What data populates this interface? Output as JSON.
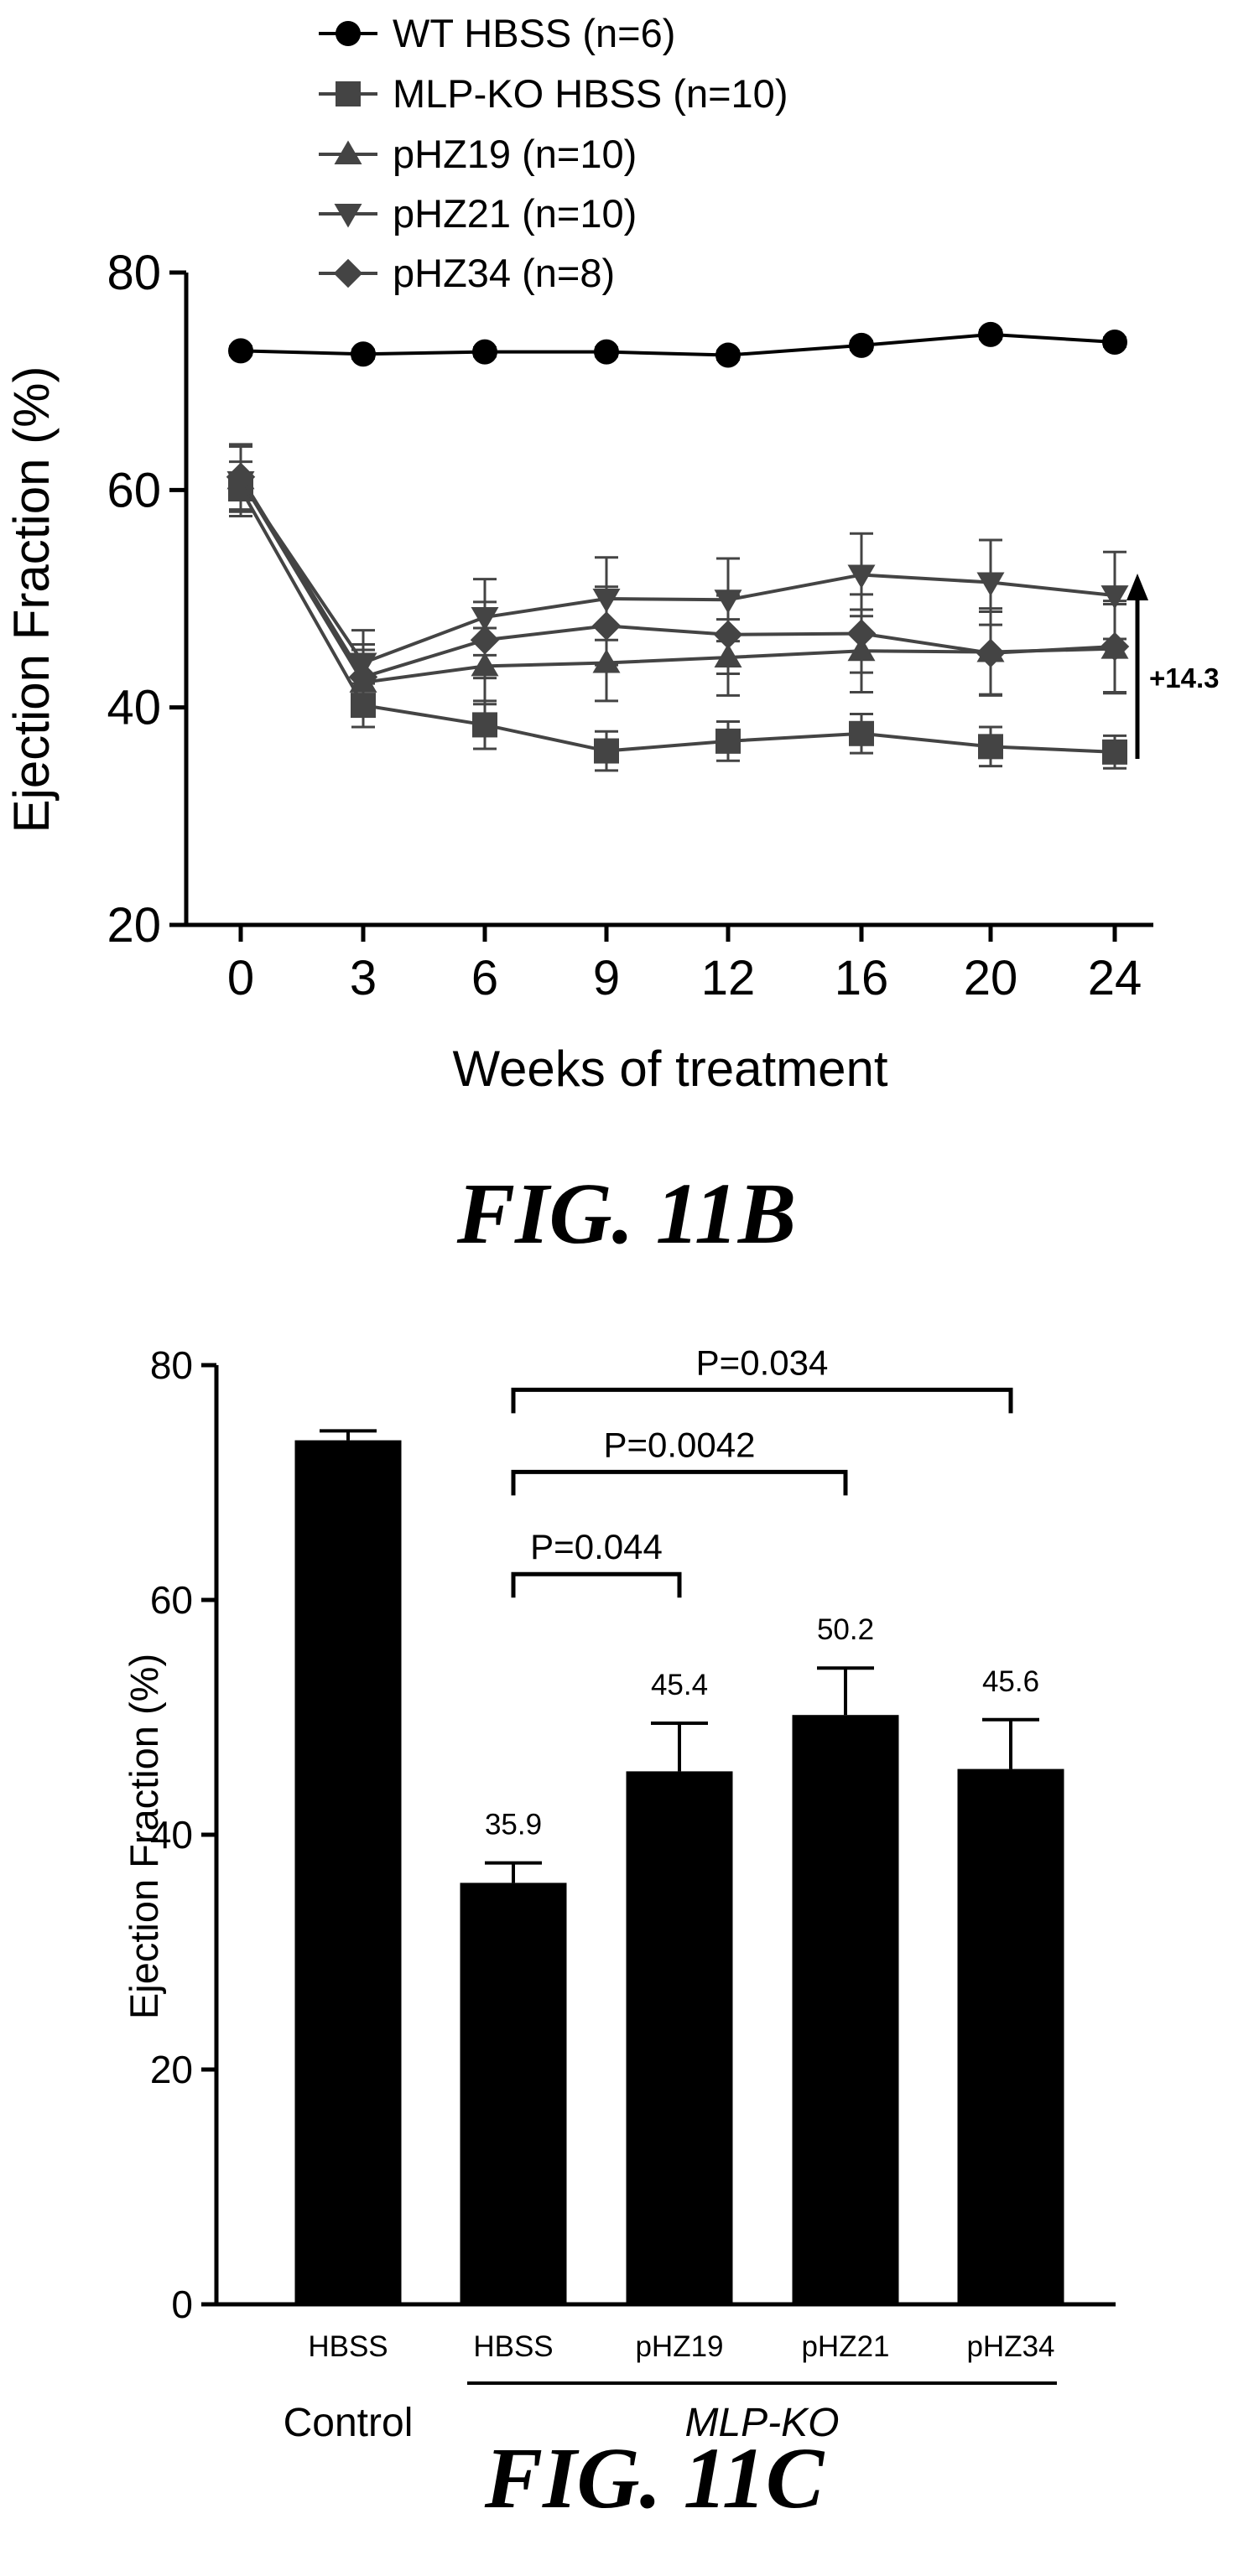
{
  "figure_b_caption": "FIG. 11B",
  "figure_c_caption": "FIG. 11C",
  "chart_data": [
    {
      "type": "line",
      "xlabel": "Weeks of treatment",
      "ylabel": "Ejection Fraction (%)",
      "ylim": [
        20,
        80
      ],
      "yticks": [
        "20",
        "40",
        "60",
        "80"
      ],
      "categories": [
        "0",
        "3",
        "6",
        "9",
        "12",
        "16",
        "20",
        "24"
      ],
      "legend_position": "top-left",
      "series": [
        {
          "name": "WT HBSS (n=6)",
          "marker": "circle",
          "values": [
            72.8,
            72.5,
            72.7,
            72.7,
            72.4,
            73.3,
            74.3,
            73.6
          ],
          "errors": [
            0.4,
            0.4,
            0.4,
            0.4,
            0.4,
            0.4,
            0.4,
            0.4
          ]
        },
        {
          "name": "MLP-KO HBSS (n=10)",
          "marker": "square",
          "values": [
            60.1,
            40.2,
            38.4,
            36.0,
            36.9,
            37.6,
            36.4,
            35.9
          ],
          "errors": [
            2.5,
            2.0,
            2.2,
            1.8,
            1.8,
            1.8,
            1.8,
            1.5
          ]
        },
        {
          "name": "pHZ19 (n=10)",
          "marker": "triangle-up",
          "values": [
            61.0,
            42.3,
            43.8,
            44.1,
            44.6,
            45.2,
            45.1,
            45.4
          ],
          "errors": [
            3.0,
            3.0,
            3.5,
            3.5,
            3.5,
            3.8,
            4.0,
            4.1
          ]
        },
        {
          "name": "pHZ21 (n=10)",
          "marker": "triangle-down",
          "values": [
            60.8,
            44.1,
            48.3,
            50.0,
            49.9,
            52.2,
            51.5,
            50.3
          ],
          "errors": [
            3.2,
            3.0,
            3.5,
            3.8,
            3.8,
            3.8,
            3.9,
            4.0
          ]
        },
        {
          "name": "pHZ34 (n=8)",
          "marker": "diamond",
          "values": [
            61.2,
            42.8,
            46.2,
            47.5,
            46.7,
            46.8,
            45.0,
            45.6
          ],
          "errors": [
            3.0,
            3.0,
            3.5,
            3.6,
            3.6,
            3.6,
            3.8,
            4.2
          ]
        }
      ],
      "annotation": {
        "text": "+14.3",
        "from": 35.9,
        "to": 50.2
      }
    },
    {
      "type": "bar",
      "ylabel": "Ejection Fraction (%)",
      "ylim": [
        0,
        80
      ],
      "yticks": [
        "0",
        "20",
        "40",
        "60",
        "80"
      ],
      "categories": [
        "HBSS",
        "HBSS",
        "pHZ19",
        "pHZ21",
        "pHZ34"
      ],
      "values": [
        73.6,
        35.9,
        45.4,
        50.2,
        45.6
      ],
      "errors": [
        0.8,
        1.7,
        4.1,
        4.0,
        4.2
      ],
      "data_labels": [
        "",
        "35.9",
        "45.4",
        "50.2",
        "45.6"
      ],
      "groups": [
        {
          "label": "Control",
          "from": 0,
          "to": 0,
          "italic": false
        },
        {
          "label": "MLP-KO",
          "from": 1,
          "to": 4,
          "italic": true
        }
      ],
      "comparisons": [
        {
          "from": 1,
          "to": 2,
          "label": "P=0.044",
          "y": 62.2
        },
        {
          "from": 1,
          "to": 3,
          "label": "P=0.0042",
          "y": 70.9
        },
        {
          "from": 1,
          "to": 4,
          "label": "P=0.034",
          "y": 77.9
        }
      ]
    }
  ]
}
